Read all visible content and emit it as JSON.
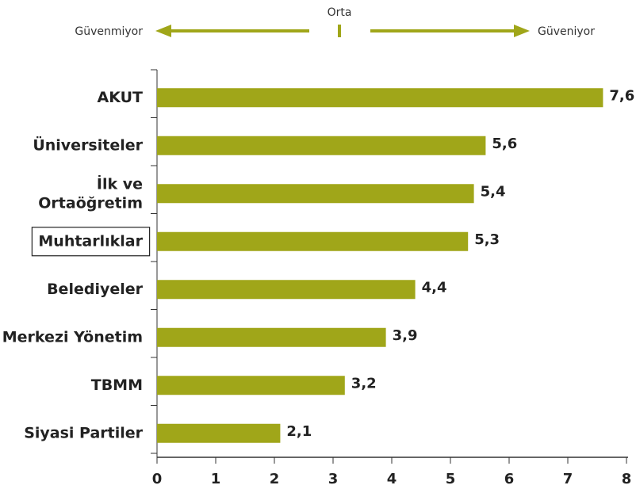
{
  "chart_data": {
    "type": "bar",
    "orientation": "horizontal",
    "annotations": {
      "center": "Orta",
      "left": "Güvenmiyor",
      "right": "Güveniyor"
    },
    "categories": [
      "AKUT",
      "Üniversiteler",
      "İlk ve Ortaöğretim",
      "Muhtarlıklar",
      "Belediyeler",
      "Merkezi Yönetim",
      "TBMM",
      "Siyasi Partiler"
    ],
    "values": [
      7.6,
      5.6,
      5.4,
      5.3,
      4.4,
      3.9,
      3.2,
      2.1
    ],
    "value_labels": [
      "7,6",
      "5,6",
      "5,4",
      "5,3",
      "4,4",
      "3,9",
      "3,2",
      "2,1"
    ],
    "highlight": "Muhtarlıklar",
    "color": "#a0a619",
    "xlim": [
      0,
      8
    ],
    "xticks": [
      0,
      1,
      2,
      3,
      4,
      5,
      6,
      7,
      8
    ]
  }
}
